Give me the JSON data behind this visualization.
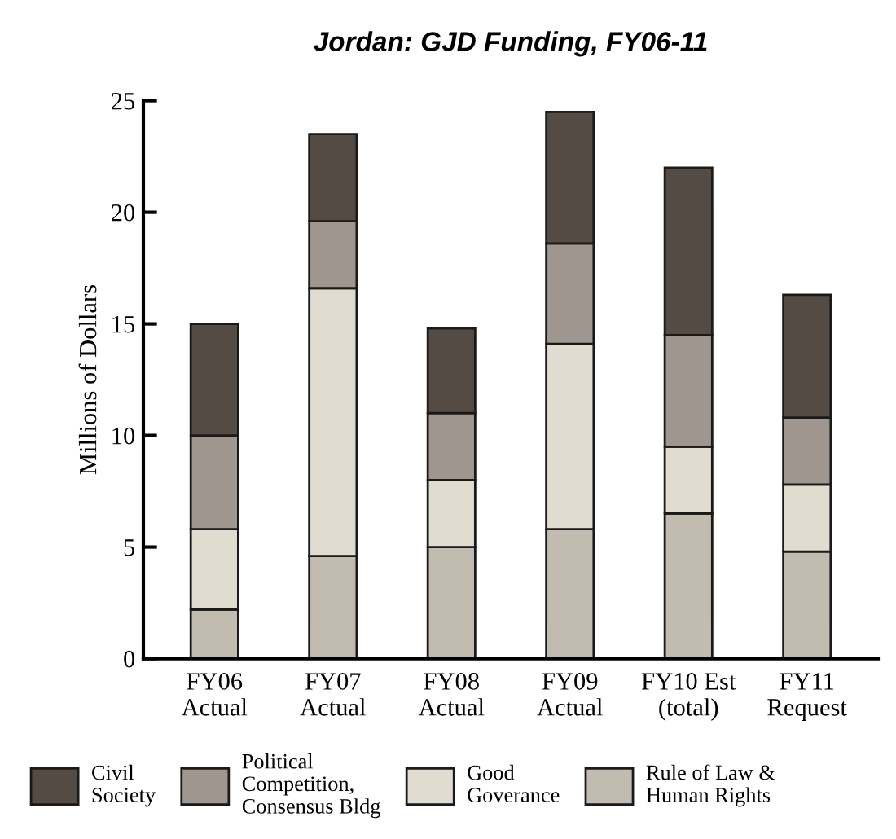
{
  "chart_data": {
    "type": "bar",
    "title": "Jordan: GJD Funding, FY06-11",
    "ylabel": "Millions of Dollars",
    "categories": [
      "FY06\nActual",
      "FY07\nActual",
      "FY08\nActual",
      "FY09\nActual",
      "FY10 Est\n(total)",
      "FY11\nRequest"
    ],
    "stacked": true,
    "ylim": [
      0,
      25
    ],
    "yticks": [
      0,
      5,
      10,
      15,
      20,
      25
    ],
    "grid": false,
    "legend": "bottom",
    "series": [
      {
        "name": "Rule of Law &\nHuman Rights",
        "color": "#c2bbb0",
        "values": [
          2.2,
          4.6,
          5.0,
          5.8,
          6.5,
          4.8
        ]
      },
      {
        "name": "Good\nGoverance",
        "color": "#e0ddd0",
        "values": [
          3.6,
          12.0,
          3.0,
          8.3,
          3.0,
          3.0
        ]
      },
      {
        "name": "Political\nCompetition,\nConsensus Bldg",
        "color": "#a09690",
        "values": [
          4.2,
          3.0,
          3.0,
          4.5,
          5.0,
          3.0
        ]
      },
      {
        "name": "Civil\nSociety",
        "color": "#554b45",
        "values": [
          5.0,
          3.9,
          3.8,
          5.9,
          7.5,
          5.5
        ]
      }
    ]
  }
}
